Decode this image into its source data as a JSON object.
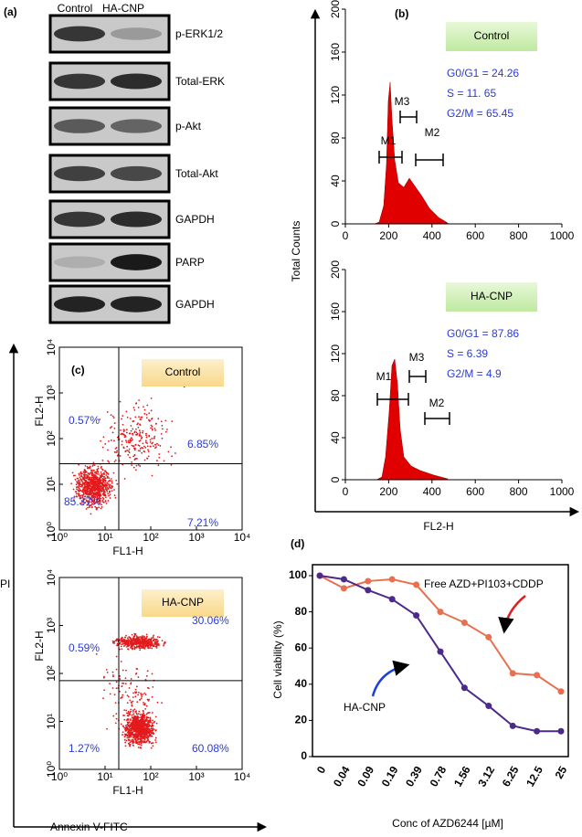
{
  "panels": {
    "a": {
      "label": "(a)",
      "columns": [
        "Control",
        "HA-CNP"
      ],
      "rows": [
        "p-ERK1/2",
        "Total-ERK",
        "p-Akt",
        "Total-Akt",
        "GAPDH",
        "PARP",
        "GAPDH"
      ]
    },
    "b": {
      "label": "(b)",
      "y_label": "Total Counts",
      "x_label": "FL2-H",
      "xlim": [
        0,
        1000
      ],
      "xticks": [
        0,
        200,
        400,
        600,
        800,
        1000
      ],
      "ylim": [
        0,
        200
      ],
      "yticks": [
        0,
        40,
        80,
        120,
        160,
        200
      ],
      "plots": [
        {
          "title": "Control",
          "stats": [
            "G0/G1 = 24.26",
            "S = 11. 65",
            "G2/M = 65.45"
          ],
          "gates": [
            "M1",
            "M3",
            "M2"
          ]
        },
        {
          "title": "HA-CNP",
          "stats": [
            "G0/G1 = 87.86",
            "S = 6.39",
            "G2/M = 4.9"
          ],
          "gates": [
            "M1",
            "M3",
            "M2"
          ]
        }
      ]
    },
    "c": {
      "label": "(c)",
      "y_label": "PI",
      "x_label": "Annexin V-FITC",
      "plot_y_label": "FL2-H",
      "plot_x_label": "FL1-H",
      "lim": [
        0,
        4
      ],
      "ticks": [
        {
          "value": 0,
          "label": "10⁰"
        },
        {
          "value": 1,
          "label": "10¹"
        },
        {
          "value": 2,
          "label": "10²"
        },
        {
          "value": 3,
          "label": "10³"
        },
        {
          "value": 4,
          "label": "10⁴"
        }
      ],
      "plots": [
        {
          "title": "Control",
          "quadrants": [
            "0.57%",
            "6.85%",
            "85.37%",
            "7.21%"
          ]
        },
        {
          "title": "HA-CNP",
          "quadrants": [
            "0.59%",
            "30.06%",
            "1.27%",
            "60.08%"
          ]
        }
      ]
    }
  },
  "chart_data": {
    "type": "line",
    "label": "(d)",
    "y_label": "Cell viability (%)",
    "x_label": "Conc of AZD6244 [µM]",
    "categories": [
      "0",
      "0.04",
      "0.09",
      "0.19",
      "0.39",
      "0.78",
      "1.56",
      "3.12",
      "6.25",
      "12.5",
      "25"
    ],
    "series": [
      {
        "name": "Free AZD+PI103+CDDP",
        "color": "#e8704f",
        "values": [
          100,
          93,
          97,
          98,
          95,
          80,
          74,
          66,
          46,
          45,
          36
        ]
      },
      {
        "name": "HA-CNP",
        "color": "#4b2a8a",
        "values": [
          100,
          98,
          92,
          87,
          78,
          58,
          38,
          28,
          17,
          14,
          14
        ]
      }
    ],
    "ylim": [
      0,
      100
    ],
    "yticks": [
      0,
      20,
      40,
      60,
      80,
      100
    ]
  }
}
